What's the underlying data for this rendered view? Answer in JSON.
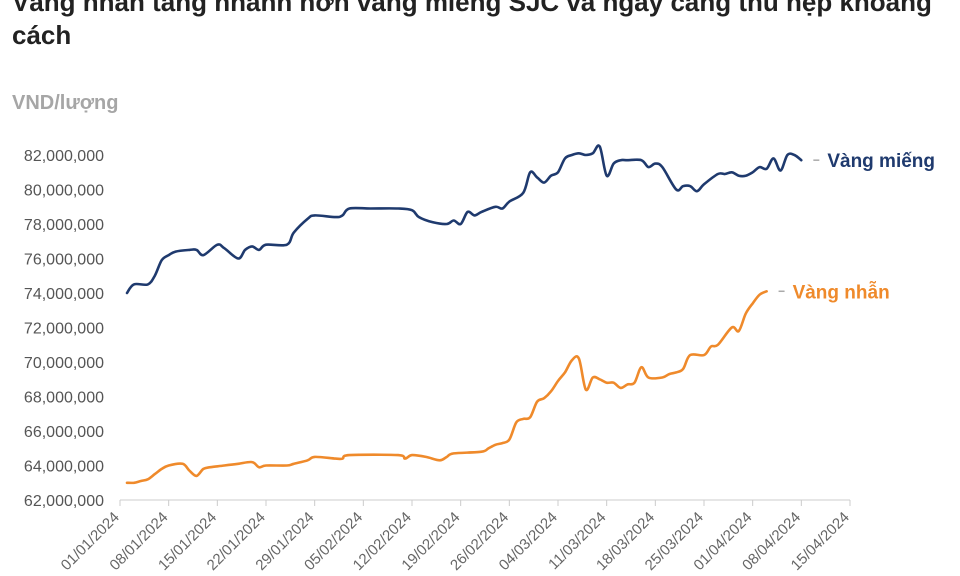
{
  "title": "Vàng nhẫn tăng nhanh hơn vàng miếng SJC và ngày càng thu hẹp khoảng cách",
  "unit_label": "VND/lượng",
  "chart_data": {
    "type": "line",
    "ylim": [
      62000000,
      82000000
    ],
    "ytick_values": [
      62000000,
      64000000,
      66000000,
      68000000,
      70000000,
      72000000,
      74000000,
      76000000,
      78000000,
      80000000,
      82000000
    ],
    "ytick_labels": [
      "62,000,000",
      "64,000,000",
      "66,000,000",
      "68,000,000",
      "70,000,000",
      "72,000,000",
      "74,000,000",
      "76,000,000",
      "78,000,000",
      "80,000,000",
      "82,000,000"
    ],
    "xlim": [
      "2024-01-01",
      "2024-04-15"
    ],
    "xtick_values": [
      "2024-01-01",
      "2024-01-08",
      "2024-01-15",
      "2024-01-22",
      "2024-01-29",
      "2024-02-05",
      "2024-02-12",
      "2024-02-19",
      "2024-02-26",
      "2024-03-04",
      "2024-03-11",
      "2024-03-18",
      "2024-03-25",
      "2024-04-01",
      "2024-04-08",
      "2024-04-15"
    ],
    "xtick_labels": [
      "01/01/2024",
      "08/01/2024",
      "15/01/2024",
      "22/01/2024",
      "29/01/2024",
      "05/02/2024",
      "12/02/2024",
      "19/02/2024",
      "26/02/2024",
      "04/03/2024",
      "11/03/2024",
      "18/03/2024",
      "25/03/2024",
      "01/04/2024",
      "08/04/2024",
      "15/04/2024"
    ],
    "grid": false,
    "series": [
      {
        "name": "Vàng miếng",
        "color": "#1f3a6e",
        "points": [
          [
            "2024-01-02",
            74000000
          ],
          [
            "2024-01-03",
            74500000
          ],
          [
            "2024-01-05",
            74500000
          ],
          [
            "2024-01-06",
            75000000
          ],
          [
            "2024-01-07",
            75900000
          ],
          [
            "2024-01-08",
            76200000
          ],
          [
            "2024-01-09",
            76400000
          ],
          [
            "2024-01-11",
            76500000
          ],
          [
            "2024-01-12",
            76500000
          ],
          [
            "2024-01-13",
            76200000
          ],
          [
            "2024-01-15",
            76800000
          ],
          [
            "2024-01-16",
            76600000
          ],
          [
            "2024-01-18",
            76000000
          ],
          [
            "2024-01-19",
            76500000
          ],
          [
            "2024-01-20",
            76700000
          ],
          [
            "2024-01-21",
            76500000
          ],
          [
            "2024-01-22",
            76800000
          ],
          [
            "2024-01-25",
            76800000
          ],
          [
            "2024-01-26",
            77500000
          ],
          [
            "2024-01-28",
            78300000
          ],
          [
            "2024-01-29",
            78500000
          ],
          [
            "2024-02-01",
            78400000
          ],
          [
            "2024-02-02",
            78500000
          ],
          [
            "2024-02-03",
            78900000
          ],
          [
            "2024-02-06",
            78900000
          ],
          [
            "2024-02-10",
            78900000
          ],
          [
            "2024-02-12",
            78800000
          ],
          [
            "2024-02-13",
            78400000
          ],
          [
            "2024-02-15",
            78100000
          ],
          [
            "2024-02-17",
            78000000
          ],
          [
            "2024-02-18",
            78200000
          ],
          [
            "2024-02-19",
            78000000
          ],
          [
            "2024-02-20",
            78700000
          ],
          [
            "2024-02-21",
            78500000
          ],
          [
            "2024-02-22",
            78700000
          ],
          [
            "2024-02-24",
            79000000
          ],
          [
            "2024-02-25",
            78900000
          ],
          [
            "2024-02-26",
            79300000
          ],
          [
            "2024-02-28",
            79800000
          ],
          [
            "2024-02-29",
            81000000
          ],
          [
            "2024-03-01",
            80700000
          ],
          [
            "2024-03-02",
            80400000
          ],
          [
            "2024-03-03",
            80800000
          ],
          [
            "2024-03-04",
            81000000
          ],
          [
            "2024-03-05",
            81800000
          ],
          [
            "2024-03-06",
            82000000
          ],
          [
            "2024-03-07",
            82100000
          ],
          [
            "2024-03-08",
            82000000
          ],
          [
            "2024-03-09",
            82100000
          ],
          [
            "2024-03-10",
            82500000
          ],
          [
            "2024-03-11",
            80800000
          ],
          [
            "2024-03-12",
            81500000
          ],
          [
            "2024-03-13",
            81700000
          ],
          [
            "2024-03-14",
            81700000
          ],
          [
            "2024-03-16",
            81700000
          ],
          [
            "2024-03-17",
            81300000
          ],
          [
            "2024-03-18",
            81500000
          ],
          [
            "2024-03-19",
            81300000
          ],
          [
            "2024-03-21",
            80000000
          ],
          [
            "2024-03-22",
            80200000
          ],
          [
            "2024-03-23",
            80200000
          ],
          [
            "2024-03-24",
            79900000
          ],
          [
            "2024-03-25",
            80300000
          ],
          [
            "2024-03-27",
            80900000
          ],
          [
            "2024-03-28",
            80900000
          ],
          [
            "2024-03-29",
            81000000
          ],
          [
            "2024-03-30",
            80800000
          ],
          [
            "2024-03-31",
            80800000
          ],
          [
            "2024-04-01",
            81000000
          ],
          [
            "2024-04-02",
            81300000
          ],
          [
            "2024-04-03",
            81200000
          ],
          [
            "2024-04-04",
            81800000
          ],
          [
            "2024-04-05",
            81100000
          ],
          [
            "2024-04-06",
            82000000
          ],
          [
            "2024-04-07",
            82000000
          ],
          [
            "2024-04-08",
            81700000
          ]
        ]
      },
      {
        "name": "Vàng nhẫn",
        "color": "#ef8a2b",
        "points": [
          [
            "2024-01-02",
            63000000
          ],
          [
            "2024-01-03",
            63000000
          ],
          [
            "2024-01-04",
            63100000
          ],
          [
            "2024-01-05",
            63200000
          ],
          [
            "2024-01-06",
            63500000
          ],
          [
            "2024-01-07",
            63800000
          ],
          [
            "2024-01-08",
            64000000
          ],
          [
            "2024-01-10",
            64100000
          ],
          [
            "2024-01-11",
            63700000
          ],
          [
            "2024-01-12",
            63400000
          ],
          [
            "2024-01-13",
            63800000
          ],
          [
            "2024-01-14",
            63900000
          ],
          [
            "2024-01-16",
            64000000
          ],
          [
            "2024-01-18",
            64100000
          ],
          [
            "2024-01-20",
            64200000
          ],
          [
            "2024-01-21",
            63900000
          ],
          [
            "2024-01-22",
            64000000
          ],
          [
            "2024-01-25",
            64000000
          ],
          [
            "2024-01-26",
            64100000
          ],
          [
            "2024-01-28",
            64300000
          ],
          [
            "2024-01-29",
            64500000
          ],
          [
            "2024-02-01",
            64400000
          ],
          [
            "2024-02-02",
            64400000
          ],
          [
            "2024-02-03",
            64600000
          ],
          [
            "2024-02-10",
            64600000
          ],
          [
            "2024-02-11",
            64400000
          ],
          [
            "2024-02-12",
            64600000
          ],
          [
            "2024-02-14",
            64500000
          ],
          [
            "2024-02-16",
            64300000
          ],
          [
            "2024-02-17",
            64500000
          ],
          [
            "2024-02-18",
            64700000
          ],
          [
            "2024-02-22",
            64800000
          ],
          [
            "2024-02-23",
            65000000
          ],
          [
            "2024-02-24",
            65200000
          ],
          [
            "2024-02-25",
            65300000
          ],
          [
            "2024-02-26",
            65500000
          ],
          [
            "2024-02-27",
            66500000
          ],
          [
            "2024-02-28",
            66700000
          ],
          [
            "2024-02-29",
            66800000
          ],
          [
            "2024-03-01",
            67700000
          ],
          [
            "2024-03-02",
            67900000
          ],
          [
            "2024-03-03",
            68300000
          ],
          [
            "2024-03-04",
            68900000
          ],
          [
            "2024-03-05",
            69400000
          ],
          [
            "2024-03-06",
            70100000
          ],
          [
            "2024-03-07",
            70200000
          ],
          [
            "2024-03-08",
            68400000
          ],
          [
            "2024-03-09",
            69100000
          ],
          [
            "2024-03-10",
            69000000
          ],
          [
            "2024-03-11",
            68800000
          ],
          [
            "2024-03-12",
            68800000
          ],
          [
            "2024-03-13",
            68500000
          ],
          [
            "2024-03-14",
            68700000
          ],
          [
            "2024-03-15",
            68800000
          ],
          [
            "2024-03-16",
            69700000
          ],
          [
            "2024-03-17",
            69100000
          ],
          [
            "2024-03-19",
            69100000
          ],
          [
            "2024-03-20",
            69300000
          ],
          [
            "2024-03-21",
            69400000
          ],
          [
            "2024-03-22",
            69600000
          ],
          [
            "2024-03-23",
            70400000
          ],
          [
            "2024-03-25",
            70400000
          ],
          [
            "2024-03-26",
            70900000
          ],
          [
            "2024-03-27",
            71000000
          ],
          [
            "2024-03-29",
            72000000
          ],
          [
            "2024-03-30",
            71800000
          ],
          [
            "2024-03-31",
            72800000
          ],
          [
            "2024-04-01",
            73400000
          ],
          [
            "2024-04-02",
            73900000
          ],
          [
            "2024-04-03",
            74100000
          ]
        ]
      }
    ]
  }
}
